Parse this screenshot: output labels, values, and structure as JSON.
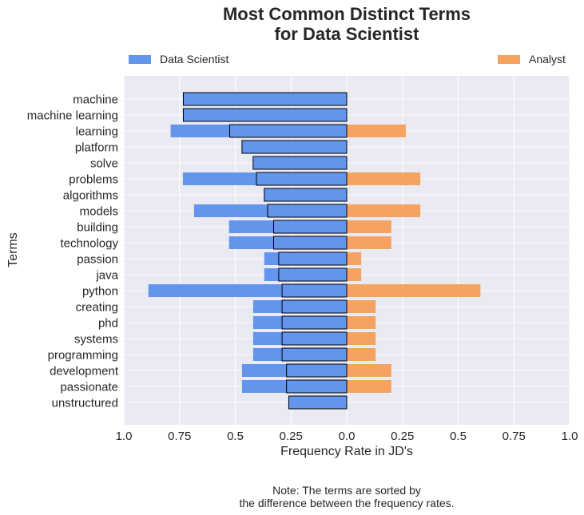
{
  "chart_data": {
    "type": "bar",
    "orientation": "horizontal",
    "title_lines": [
      "Most Common Distinct Terms",
      "for Data Scientist"
    ],
    "xlabel": "Frequency Rate in JD's",
    "ylabel": "Terms",
    "note_lines": [
      "Note: The terms are sorted by",
      "the difference between the frequency rates."
    ],
    "xticks": [
      "1.0",
      "0.75",
      "0.5",
      "0.25",
      "0.0",
      "0.25",
      "0.5",
      "0.75",
      "1.0"
    ],
    "xlim": [
      -1.0,
      1.0
    ],
    "grid": true,
    "colors": {
      "data_scientist": "#6495ED",
      "analyst": "#F4A460",
      "background": "#EAEAF2"
    },
    "categories": [
      "machine",
      "machine learning",
      "learning",
      "platform",
      "solve",
      "problems",
      "algorithms",
      "models",
      "building",
      "technology",
      "passion",
      "java",
      "python",
      "creating",
      "phd",
      "systems",
      "programming",
      "development",
      "passionate",
      "unstructured"
    ],
    "series": [
      {
        "name": "Data Scientist",
        "color": "#6495ED",
        "side": "left",
        "values": [
          0.733,
          0.733,
          0.79,
          0.47,
          0.42,
          0.735,
          0.37,
          0.685,
          0.528,
          0.528,
          0.37,
          0.37,
          0.89,
          0.42,
          0.42,
          0.42,
          0.42,
          0.47,
          0.47,
          0.26
        ]
      },
      {
        "name": "Analyst",
        "color": "#F4A460",
        "side": "right",
        "values": [
          0,
          0,
          0.265,
          0,
          0,
          0.33,
          0,
          0.33,
          0.2,
          0.2,
          0.065,
          0.065,
          0.6,
          0.13,
          0.13,
          0.13,
          0.13,
          0.2,
          0.2,
          0
        ]
      }
    ],
    "difference": [
      0.733,
      0.733,
      0.525,
      0.47,
      0.42,
      0.405,
      0.37,
      0.355,
      0.328,
      0.328,
      0.305,
      0.305,
      0.29,
      0.29,
      0.29,
      0.29,
      0.29,
      0.27,
      0.27,
      0.26
    ],
    "legend": {
      "left_label": "Data Scientist",
      "right_label": "Analyst",
      "placement": "top"
    }
  }
}
